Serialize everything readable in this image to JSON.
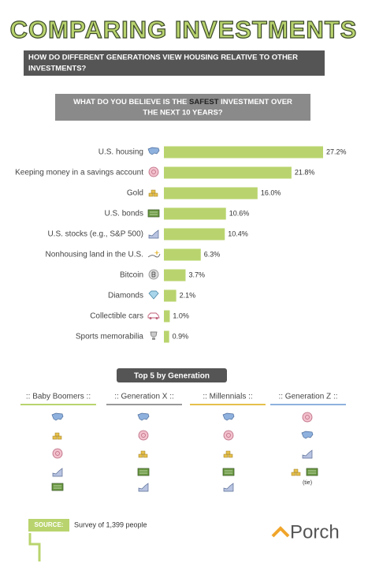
{
  "header": {
    "title": "COMPARING INVESTMENTS",
    "subtitle_lines": [
      "HOW DO DIFFERENT GENERATIONS VIEW HOUSING RELATIVE TO OTHER",
      "INVESTMENTS?"
    ]
  },
  "question": {
    "line1": [
      "WHAT DO YOU BELIEVE IS THE",
      "SAFEST",
      "INVESTMENT OVER"
    ],
    "line2": "THE NEXT 10 YEARS?"
  },
  "chart_data": {
    "type": "bar",
    "orientation": "horizontal",
    "color": "#b9d46e",
    "categories": [
      "U.S. housing",
      "Keeping money in a savings account",
      "Gold",
      "U.S. bonds",
      "U.S. stocks (e.g., S&P 500)",
      "Nonhousing land in the U.S.",
      "Bitcoin",
      "Diamonds",
      "Collectible cars",
      "Sports memorabilia"
    ],
    "values": [
      27.2,
      21.8,
      16.0,
      10.6,
      10.4,
      6.3,
      3.7,
      2.1,
      1.0,
      0.9
    ],
    "value_labels": [
      "27.2%",
      "21.8%",
      "16.0%",
      "10.6%",
      "10.4%",
      "6.3%",
      "3.7%",
      "2.1%",
      "1.0%",
      "0.9%"
    ]
  },
  "generations": {
    "title": "Top 5 by Generation",
    "columns": [
      ":: Baby Boomers ::",
      ":: Generation X ::",
      ":: Millennials ::",
      ":: Generation Z ::"
    ],
    "tie_note": "(tie)"
  },
  "footer": {
    "source_label": "SOURCE:",
    "source_text": "Survey of 1,399 people",
    "brand": "Porch"
  }
}
